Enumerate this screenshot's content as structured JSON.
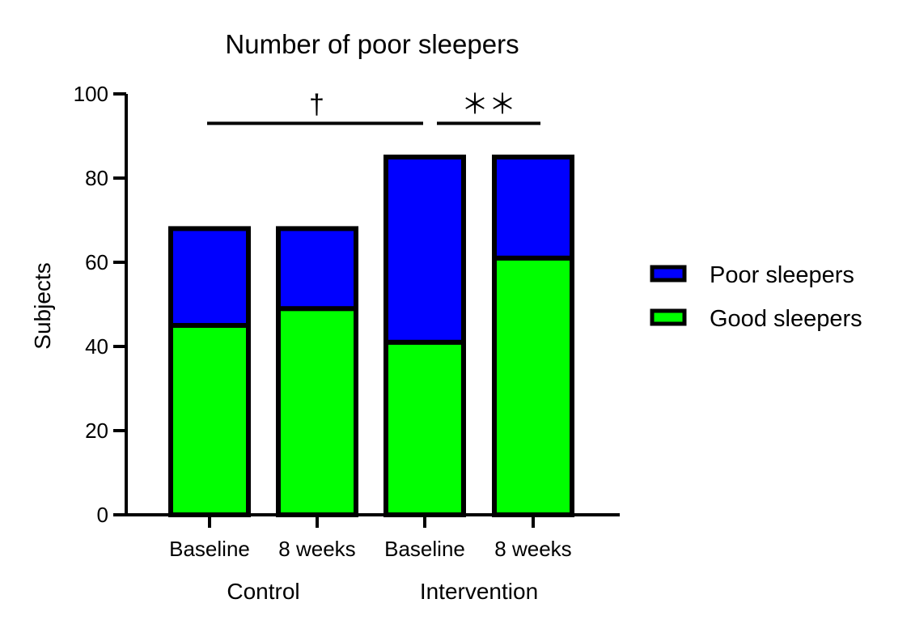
{
  "chart_data": {
    "type": "bar",
    "stacked": true,
    "title": "Number of poor sleepers",
    "ylabel": "Subjects",
    "xlabel": "",
    "ylim": [
      0,
      100
    ],
    "yticks": [
      "0",
      "20",
      "40",
      "60",
      "80",
      "100"
    ],
    "categories": [
      "Baseline",
      "8 weeks",
      "Baseline",
      "8 weeks"
    ],
    "groups": [
      {
        "label": "Control",
        "categories": [
          0,
          1
        ]
      },
      {
        "label": "Intervention",
        "categories": [
          2,
          3
        ]
      }
    ],
    "series": [
      {
        "name": "Good sleepers",
        "color": "#00ff00",
        "values": [
          45,
          49,
          41,
          61
        ]
      },
      {
        "name": "Poor sleepers",
        "color": "#0000ff",
        "values": [
          23,
          19,
          44,
          24
        ]
      }
    ],
    "legend": {
      "position": "right",
      "entries": [
        {
          "name": "Poor sleepers",
          "color": "#0000ff"
        },
        {
          "name": "Good sleepers",
          "color": "#00ff00"
        }
      ]
    },
    "annotations": [
      {
        "text": "†",
        "from": 0,
        "to": 2,
        "y": 93
      },
      {
        "text": "＊＊",
        "from": 2,
        "to": 3,
        "y": 93
      }
    ],
    "grid": false
  }
}
